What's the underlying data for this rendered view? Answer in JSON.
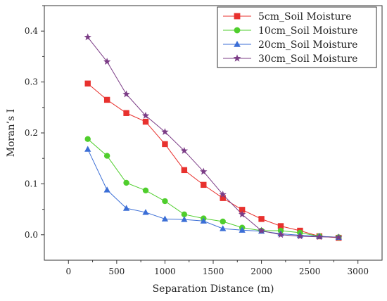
{
  "chart_data": {
    "type": "line",
    "xlabel": "Separation Distance (m)",
    "ylabel": "Moran’s I",
    "xlim": [
      -250,
      3250
    ],
    "ylim": [
      -0.05,
      0.45
    ],
    "xticks": [
      0,
      500,
      1000,
      1500,
      2000,
      2500,
      3000
    ],
    "yticks": [
      0.0,
      0.1,
      0.2,
      0.3,
      0.4
    ],
    "xtick_labels": [
      "0",
      "500",
      "1000",
      "1500",
      "2000",
      "2500",
      "3000"
    ],
    "ytick_labels": [
      "0.0",
      "0.1",
      "0.2",
      "0.3",
      "0.4"
    ],
    "legend_position": "top-right",
    "x": [
      200,
      400,
      600,
      800,
      1000,
      1200,
      1400,
      1600,
      1800,
      2000,
      2200,
      2400,
      2600,
      2800
    ],
    "series": [
      {
        "name": "5cm_Soil Moisture",
        "marker": "square",
        "color": "#e8312e",
        "values": [
          0.297,
          0.265,
          0.239,
          0.222,
          0.178,
          0.127,
          0.098,
          0.072,
          0.049,
          0.031,
          0.017,
          0.008,
          -0.003,
          -0.006
        ]
      },
      {
        "name": "10cm_Soil Moisture",
        "marker": "circle",
        "color": "#4fce2c",
        "values": [
          0.188,
          0.155,
          0.102,
          0.087,
          0.066,
          0.04,
          0.032,
          0.026,
          0.014,
          0.008,
          0.008,
          0.004,
          -0.003,
          -0.005
        ]
      },
      {
        "name": "20cm_Soil Moisture",
        "marker": "triangle",
        "color": "#3b6ed6",
        "values": [
          0.168,
          0.088,
          0.052,
          0.044,
          0.031,
          0.03,
          0.027,
          0.012,
          0.009,
          0.007,
          0.002,
          -0.001,
          -0.003,
          -0.005
        ]
      },
      {
        "name": "30cm_Soil Moisture",
        "marker": "star",
        "color": "#7b3c86",
        "values": [
          0.388,
          0.34,
          0.276,
          0.234,
          0.202,
          0.165,
          0.124,
          0.079,
          0.04,
          0.008,
          0.0,
          -0.003,
          -0.004,
          -0.005
        ]
      }
    ]
  }
}
